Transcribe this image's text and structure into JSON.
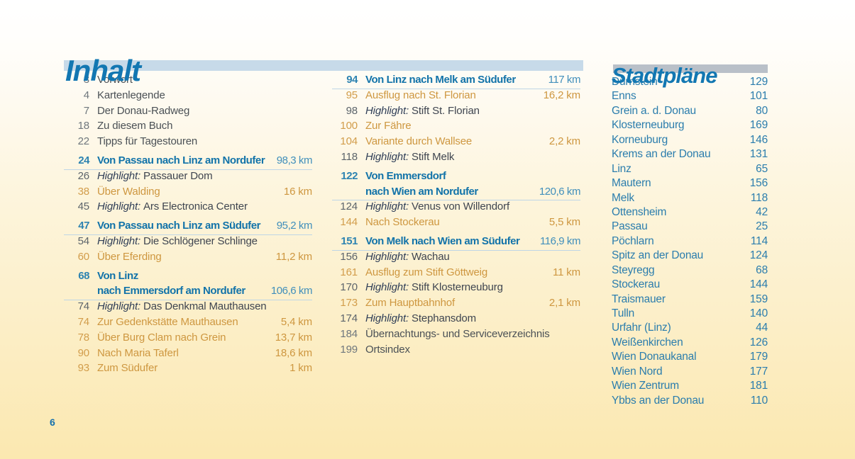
{
  "titles": {
    "inhalt": "Inhalt",
    "stadtplaene": "Stadtpläne"
  },
  "folio": "6",
  "colors": {
    "title_blue": "#1277b2",
    "inhalt_bar": "#c7dae9",
    "stadtplaene_bar": "#b9c0c8",
    "section_blue": "#1273a9",
    "variant_orange": "#ce9740",
    "body_gray": "#4b5156",
    "background_cream": "#fbe8b0"
  },
  "toc_left": [
    {
      "page": "3",
      "text": "Vorwort",
      "km": "",
      "style": "plain"
    },
    {
      "page": "4",
      "text": "Kartenlegende",
      "km": "",
      "style": "plain"
    },
    {
      "page": "7",
      "text": "Der Donau-Radweg",
      "km": "",
      "style": "plain"
    },
    {
      "page": "18",
      "text": "Zu diesem Buch",
      "km": "",
      "style": "plain"
    },
    {
      "page": "22",
      "text": "Tipps für Tagestouren",
      "km": "",
      "style": "plain"
    },
    {
      "page": "24",
      "text": "Von Passau nach Linz am Nordufer",
      "km": "98,3 km",
      "style": "section",
      "underline": true,
      "gap": true
    },
    {
      "page": "26",
      "prefix": "Highlight:",
      "text": "Passauer Dom",
      "km": "",
      "style": "highlight"
    },
    {
      "page": "38",
      "text": "Über Walding",
      "km": "16 km",
      "style": "variant"
    },
    {
      "page": "45",
      "prefix": "Highlight:",
      "text": "Ars Electronica Center",
      "km": "",
      "style": "highlight"
    },
    {
      "page": "47",
      "text": "Von Passau nach Linz am Südufer",
      "km": "95,2 km",
      "style": "section",
      "underline": true,
      "gap": true
    },
    {
      "page": "54",
      "prefix": "Highlight:",
      "text": "Die Schlögener Schlinge",
      "km": "",
      "style": "highlight"
    },
    {
      "page": "60",
      "text": "Über Eferding",
      "km": "11,2 km",
      "style": "variant"
    },
    {
      "page": "68",
      "text": "Von Linz",
      "km": "",
      "style": "section",
      "gap": true
    },
    {
      "page": "",
      "text": "nach Emmersdorf am Nordufer",
      "km": "106,6 km",
      "style": "section_cont",
      "underline": true
    },
    {
      "page": "74",
      "prefix": "Highlight:",
      "text": "Das Denkmal Mauthausen",
      "km": "",
      "style": "highlight"
    },
    {
      "page": "74",
      "text": "Zur Gedenkstätte Mauthausen",
      "km": "5,4 km",
      "style": "variant"
    },
    {
      "page": "78",
      "text": "Über Burg Clam nach Grein",
      "km": "13,7 km",
      "style": "variant"
    },
    {
      "page": "90",
      "text": "Nach Maria Taferl",
      "km": "18,6 km",
      "style": "variant"
    },
    {
      "page": "93",
      "text": "Zum Südufer",
      "km": "1 km",
      "style": "variant"
    }
  ],
  "toc_middle": [
    {
      "page": "94",
      "text": "Von Linz nach Melk am Südufer",
      "km": "117 km",
      "style": "section",
      "underline": true
    },
    {
      "page": "95",
      "text": "Ausflug nach St. Florian",
      "km": "16,2 km",
      "style": "variant"
    },
    {
      "page": "98",
      "prefix": "Highlight:",
      "text": "Stift St. Florian",
      "km": "",
      "style": "highlight"
    },
    {
      "page": "100",
      "text": "Zur Fähre",
      "km": "",
      "style": "variant"
    },
    {
      "page": "104",
      "text": "Variante durch Wallsee",
      "km": "2,2 km",
      "style": "variant"
    },
    {
      "page": "118",
      "prefix": "Highlight:",
      "text": "Stift Melk",
      "km": "",
      "style": "highlight"
    },
    {
      "page": "122",
      "text": "Von Emmersdorf",
      "km": "",
      "style": "section",
      "gap": true
    },
    {
      "page": "",
      "text": "nach Wien am Nordufer",
      "km": "120,6 km",
      "style": "section_cont",
      "underline": true
    },
    {
      "page": "124",
      "prefix": "Highlight:",
      "text": "Venus von Willendorf",
      "km": "",
      "style": "highlight"
    },
    {
      "page": "144",
      "text": "Nach Stockerau",
      "km": "5,5 km",
      "style": "variant"
    },
    {
      "page": "151",
      "text": "Von Melk nach Wien am Südufer",
      "km": "116,9 km",
      "style": "section",
      "underline": true,
      "gap": true
    },
    {
      "page": "156",
      "prefix": "Highlight:",
      "text": "Wachau",
      "km": "",
      "style": "highlight"
    },
    {
      "page": "161",
      "text": "Ausflug zum Stift Göttweig",
      "km": "11 km",
      "style": "variant"
    },
    {
      "page": "170",
      "prefix": "Highlight:",
      "text": "Stift Klosterneuburg",
      "km": "",
      "style": "highlight"
    },
    {
      "page": "173",
      "text": "Zum Hauptbahnhof",
      "km": "2,1 km",
      "style": "variant"
    },
    {
      "page": "174",
      "prefix": "Highlight:",
      "text": "Stephansdom",
      "km": "",
      "style": "highlight"
    },
    {
      "page": "184",
      "text": "Übernachtungs- und Serviceverzeichnis",
      "km": "",
      "style": "plain"
    },
    {
      "page": "199",
      "text": "Ortsindex",
      "km": "",
      "style": "plain"
    }
  ],
  "city_plans": [
    {
      "name": "Dürnstein",
      "page": "129"
    },
    {
      "name": "Enns",
      "page": "101"
    },
    {
      "name": "Grein a. d. Donau",
      "page": "80"
    },
    {
      "name": "Klosterneuburg",
      "page": "169"
    },
    {
      "name": "Korneuburg",
      "page": "146"
    },
    {
      "name": "Krems an der Donau",
      "page": "131"
    },
    {
      "name": "Linz",
      "page": "65"
    },
    {
      "name": "Mautern",
      "page": "156"
    },
    {
      "name": "Melk",
      "page": "118"
    },
    {
      "name": "Ottensheim",
      "page": "42"
    },
    {
      "name": "Passau",
      "page": "25"
    },
    {
      "name": "Pöchlarn",
      "page": "114"
    },
    {
      "name": "Spitz an der Donau",
      "page": "124"
    },
    {
      "name": "Steyregg",
      "page": "68"
    },
    {
      "name": "Stockerau",
      "page": "144"
    },
    {
      "name": "Traismauer",
      "page": "159"
    },
    {
      "name": "Tulln",
      "page": "140"
    },
    {
      "name": "Urfahr (Linz)",
      "page": "44"
    },
    {
      "name": "Weißenkirchen",
      "page": "126"
    },
    {
      "name": "Wien Donaukanal",
      "page": "179"
    },
    {
      "name": "Wien Nord",
      "page": "177"
    },
    {
      "name": "Wien Zentrum",
      "page": "181"
    },
    {
      "name": "Ybbs an der Donau",
      "page": "110"
    }
  ]
}
